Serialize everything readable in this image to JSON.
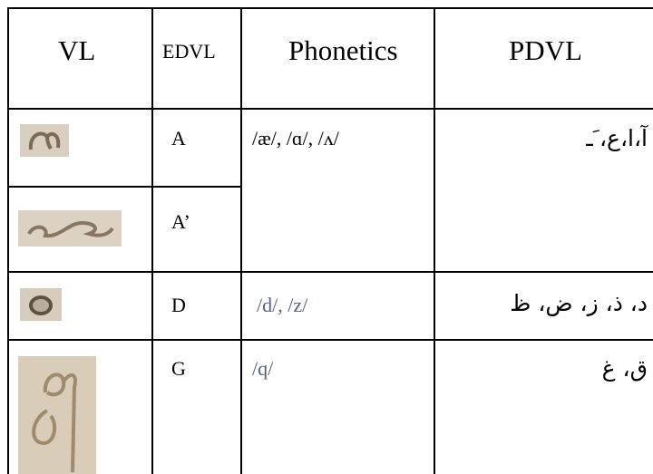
{
  "table": {
    "header": [
      "VL",
      "EDVL",
      "Phonetics",
      "PDVL"
    ],
    "rows": [
      {
        "edvl": "A",
        "phonetics": "/æ/, /ɑ/, /ʌ/",
        "pdvl": "آ،ا،ع، َـ"
      },
      {
        "edvl": "A’"
      },
      {
        "edvl": "D",
        "phonetics": "/d/, /z/",
        "pdvl": "د، ذ، ز، ض، ظ"
      },
      {
        "edvl": "G",
        "phonetics": "/q/",
        "pdvl": "ق، غ"
      }
    ]
  }
}
